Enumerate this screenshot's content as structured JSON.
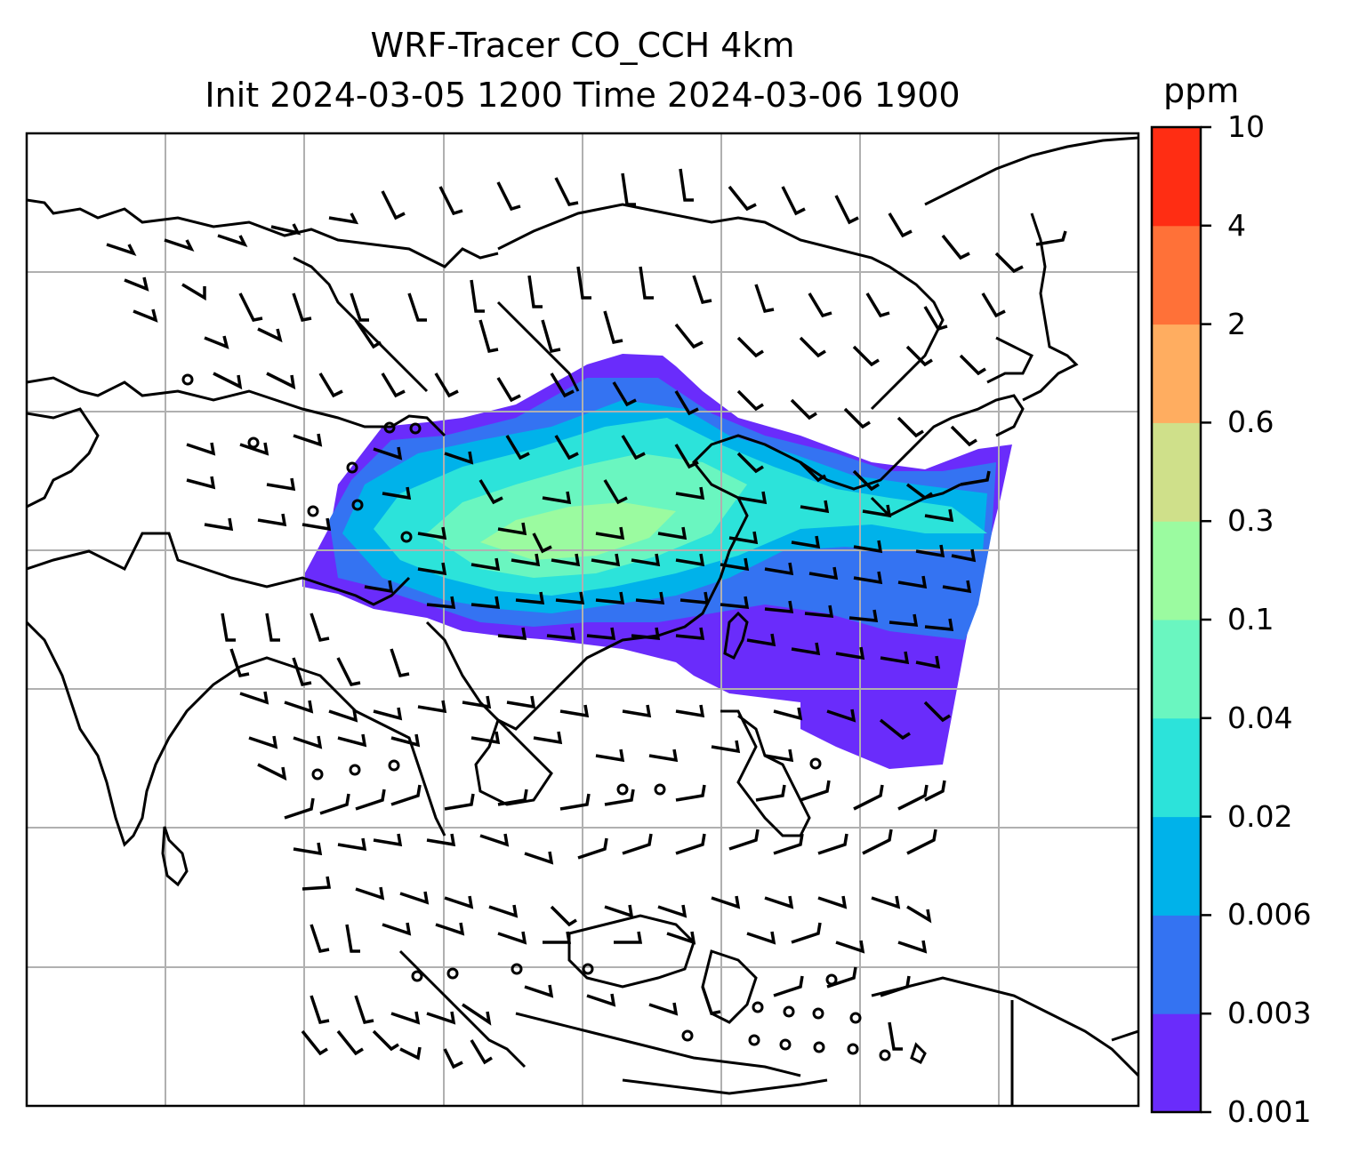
{
  "title": {
    "line1": "WRF-Tracer CO_CCH 4km",
    "line2": "Init 2024-03-05 1200 Time 2024-03-06 1900"
  },
  "colorbar": {
    "unit": "ppm",
    "levels": [
      "0.001",
      "0.003",
      "0.006",
      "0.02",
      "0.04",
      "0.1",
      "0.3",
      "0.6",
      "2",
      "4",
      "10"
    ],
    "colors": [
      "#6a2cfb",
      "#3473f2",
      "#00b2ea",
      "#2ce3da",
      "#6af6c0",
      "#9bfba0",
      "#cfe08a",
      "#ffad60",
      "#ff7138",
      "#ff2d13"
    ]
  },
  "map": {
    "field": "CO_CCH tracer concentration",
    "overlay": "wind barbs",
    "gridlines": true
  }
}
